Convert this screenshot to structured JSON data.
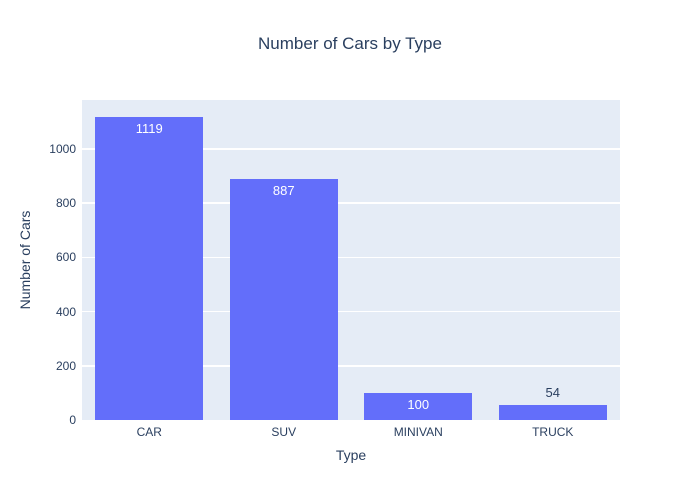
{
  "chart_data": {
    "type": "bar",
    "title": "Number of Cars by Type",
    "xlabel": "Type",
    "ylabel": "Number of Cars",
    "categories": [
      "CAR",
      "SUV",
      "MINIVAN",
      "TRUCK"
    ],
    "values": [
      1119,
      887,
      100,
      54
    ],
    "bar_labels": [
      "1119",
      "887",
      "100",
      "54"
    ],
    "yticks": [
      0,
      200,
      400,
      600,
      800,
      1000
    ],
    "ylim": [
      0,
      1180
    ],
    "grid": true,
    "legend": "none",
    "colors": {
      "bar": "#636efa",
      "plot_background": "#e5ecf6",
      "paper_background": "#ffffff",
      "gridline": "#ffffff",
      "text": "#2a3f5f",
      "bar_label_inside": "#ffffff",
      "bar_label_outside": "#2a3f5f"
    }
  }
}
